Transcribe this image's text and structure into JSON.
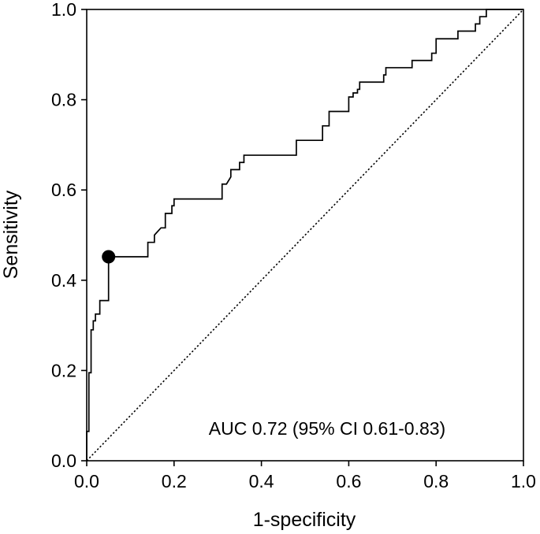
{
  "chart_data": {
    "type": "line",
    "title": "",
    "xlabel": "1-specificity",
    "ylabel": "Sensitivity",
    "xlim": [
      0.0,
      1.0
    ],
    "ylim": [
      0.0,
      1.0
    ],
    "grid": false,
    "x_ticks": [
      "0.0",
      "0.2",
      "0.4",
      "0.6",
      "0.8",
      "1.0"
    ],
    "y_ticks": [
      "0.0",
      "0.2",
      "0.4",
      "0.6",
      "0.8",
      "1.0"
    ],
    "annotation": "AUC 0.72 (95% CI 0.61-0.83)",
    "series": [
      {
        "style": "solid",
        "color": "#000000",
        "x": [
          0.0,
          0.0,
          0.005,
          0.005,
          0.01,
          0.01,
          0.015,
          0.015,
          0.02,
          0.02,
          0.03,
          0.03,
          0.05,
          0.05,
          0.14,
          0.14,
          0.155,
          0.155,
          0.17,
          0.18,
          0.18,
          0.195,
          0.195,
          0.2,
          0.2,
          0.31,
          0.31,
          0.32,
          0.33,
          0.33,
          0.35,
          0.35,
          0.36,
          0.36,
          0.48,
          0.48,
          0.495,
          0.495,
          0.54,
          0.54,
          0.555,
          0.555,
          0.6,
          0.6,
          0.61,
          0.61,
          0.62,
          0.62,
          0.625,
          0.625,
          0.68,
          0.68,
          0.685,
          0.685,
          0.745,
          0.745,
          0.79,
          0.79,
          0.8,
          0.8,
          0.85,
          0.85,
          0.89,
          0.89,
          0.9,
          0.9,
          0.915,
          0.915,
          1.0
        ],
        "y": [
          0.0,
          0.065,
          0.065,
          0.195,
          0.195,
          0.29,
          0.29,
          0.31,
          0.31,
          0.325,
          0.325,
          0.355,
          0.355,
          0.452,
          0.452,
          0.484,
          0.484,
          0.5,
          0.516,
          0.516,
          0.548,
          0.548,
          0.565,
          0.565,
          0.58,
          0.58,
          0.613,
          0.613,
          0.629,
          0.645,
          0.645,
          0.661,
          0.661,
          0.677,
          0.677,
          0.71,
          0.71,
          0.71,
          0.71,
          0.742,
          0.742,
          0.774,
          0.774,
          0.806,
          0.806,
          0.815,
          0.815,
          0.823,
          0.823,
          0.839,
          0.839,
          0.855,
          0.855,
          0.871,
          0.871,
          0.887,
          0.887,
          0.903,
          0.903,
          0.935,
          0.935,
          0.952,
          0.952,
          0.968,
          0.968,
          0.984,
          0.984,
          1.0,
          1.0
        ]
      },
      {
        "style": "dotted",
        "color": "#000000",
        "x": [
          0.0,
          1.0
        ],
        "y": [
          0.0,
          1.0
        ]
      }
    ],
    "markers": [
      {
        "x": 0.05,
        "y": 0.452,
        "color": "#000000"
      }
    ]
  }
}
